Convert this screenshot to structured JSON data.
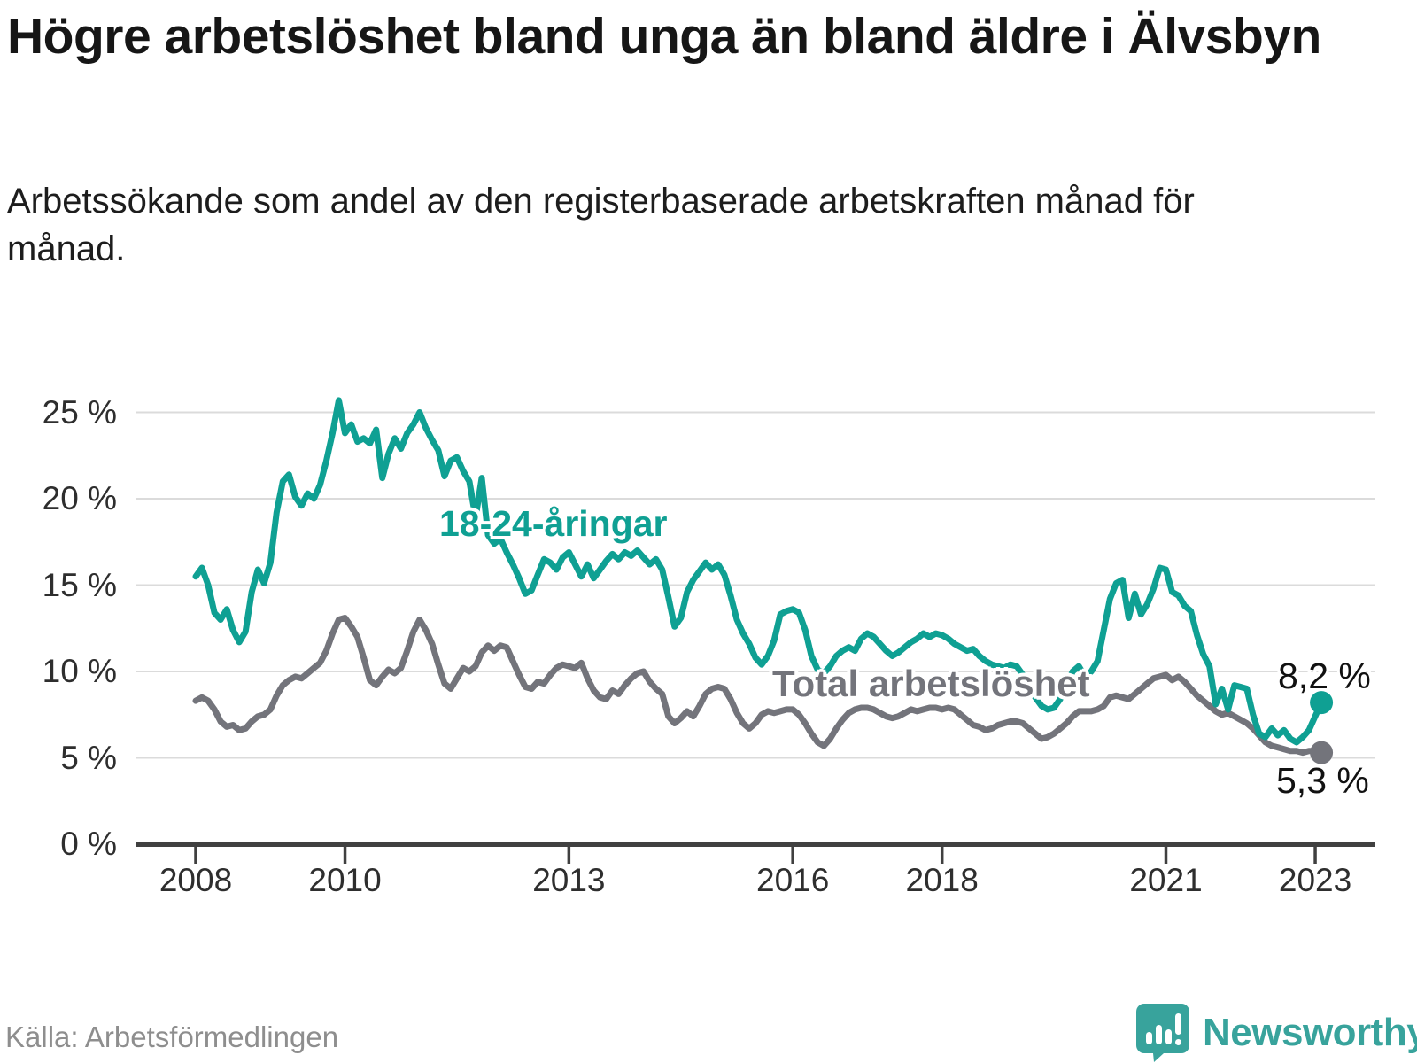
{
  "title": "Högre arbetslöshet bland unga än bland äldre i Älvsbyn",
  "subtitle": "Arbetssökande som andel av den registerbaserade arbetskraften månad för månad.",
  "source": "Källa: Arbetsförmedlingen",
  "branding": {
    "name": "Newsworthy"
  },
  "colors": {
    "youth_line": "#0fa093",
    "total_line": "#73747b",
    "axis": "#404040",
    "grid": "#dbdbdb",
    "brand_teal": "#38a39c",
    "text_dark": "#161616",
    "source_gray": "#8e8e8e"
  },
  "chart_data": {
    "type": "line",
    "unit": "%",
    "frequency": "monthly",
    "x_start": "2008-01",
    "x_end": "2023-02",
    "ylim": [
      0,
      26.5
    ],
    "grid": "horizontal",
    "y_ticks": [
      {
        "value": 0,
        "label": "0 %"
      },
      {
        "value": 5,
        "label": "5 %"
      },
      {
        "value": 10,
        "label": "10 %"
      },
      {
        "value": 15,
        "label": "15 %"
      },
      {
        "value": 20,
        "label": "20 %"
      },
      {
        "value": 25,
        "label": "25 %"
      }
    ],
    "x_ticks": [
      {
        "year": 2008,
        "label": "2008"
      },
      {
        "year": 2010,
        "label": "2010"
      },
      {
        "year": 2013,
        "label": "2013"
      },
      {
        "year": 2016,
        "label": "2016"
      },
      {
        "year": 2018,
        "label": "2018"
      },
      {
        "year": 2021,
        "label": "2021"
      },
      {
        "year": 2023,
        "label": "2023"
      }
    ],
    "series": [
      {
        "name": "18-24-åringar",
        "color": "#0fa093",
        "end_label": "8,2 %",
        "end_value": 8.2,
        "values": [
          15.5,
          16.0,
          15.0,
          13.4,
          13.0,
          13.6,
          12.4,
          11.7,
          12.3,
          14.6,
          15.9,
          15.1,
          16.3,
          19.2,
          21.0,
          21.4,
          20.1,
          19.6,
          20.3,
          20.0,
          20.8,
          22.2,
          23.8,
          25.7,
          23.8,
          24.3,
          23.3,
          23.5,
          23.2,
          24.0,
          21.2,
          22.6,
          23.5,
          22.9,
          23.8,
          24.3,
          25.0,
          24.1,
          23.4,
          22.8,
          21.3,
          22.2,
          22.4,
          21.6,
          21.0,
          18.9,
          21.2,
          17.9,
          17.4,
          17.7,
          16.9,
          16.2,
          15.4,
          14.5,
          14.7,
          15.6,
          16.5,
          16.3,
          15.9,
          16.6,
          16.9,
          16.2,
          15.5,
          16.2,
          15.4,
          15.9,
          16.4,
          16.8,
          16.5,
          16.9,
          16.7,
          17.0,
          16.6,
          16.2,
          16.5,
          15.9,
          14.3,
          12.6,
          13.1,
          14.6,
          15.3,
          15.8,
          16.3,
          15.9,
          16.2,
          15.6,
          14.4,
          13.0,
          12.2,
          11.6,
          10.8,
          10.4,
          10.9,
          11.8,
          13.3,
          13.5,
          13.6,
          13.4,
          12.4,
          10.9,
          10.1,
          9.9,
          10.3,
          10.9,
          11.2,
          11.4,
          11.2,
          11.9,
          12.2,
          12.0,
          11.6,
          11.2,
          10.9,
          11.1,
          11.4,
          11.7,
          11.9,
          12.2,
          12.0,
          12.2,
          12.1,
          11.9,
          11.6,
          11.4,
          11.2,
          11.3,
          10.9,
          10.6,
          10.4,
          10.3,
          10.2,
          10.4,
          10.3,
          9.8,
          9.2,
          8.5,
          8.0,
          7.8,
          7.9,
          8.4,
          9.2,
          10.0,
          10.3,
          9.7,
          10.0,
          10.6,
          12.4,
          14.2,
          15.1,
          15.3,
          13.1,
          14.5,
          13.3,
          13.9,
          14.8,
          16.0,
          15.9,
          14.6,
          14.4,
          13.8,
          13.5,
          12.1,
          11.0,
          10.3,
          8.1,
          9.0,
          7.8,
          9.2,
          9.1,
          9.0,
          7.5,
          6.4,
          6.2,
          6.7,
          6.3,
          6.6,
          6.1,
          5.9,
          6.2,
          6.6,
          7.4,
          8.2
        ]
      },
      {
        "name": "Total arbetslöshet",
        "color": "#73747b",
        "end_label": "5,3 %",
        "end_value": 5.3,
        "values": [
          8.3,
          8.5,
          8.3,
          7.8,
          7.1,
          6.8,
          6.9,
          6.6,
          6.7,
          7.1,
          7.4,
          7.5,
          7.8,
          8.6,
          9.2,
          9.5,
          9.7,
          9.6,
          9.9,
          10.2,
          10.5,
          11.2,
          12.2,
          13.0,
          13.1,
          12.6,
          12.0,
          10.8,
          9.5,
          9.2,
          9.7,
          10.1,
          9.9,
          10.2,
          11.2,
          12.3,
          13.0,
          12.4,
          11.6,
          10.4,
          9.3,
          9.0,
          9.6,
          10.2,
          10.0,
          10.3,
          11.1,
          11.5,
          11.2,
          11.5,
          11.4,
          10.6,
          9.8,
          9.1,
          9.0,
          9.4,
          9.3,
          9.8,
          10.2,
          10.4,
          10.3,
          10.2,
          10.5,
          9.6,
          8.9,
          8.5,
          8.4,
          8.9,
          8.7,
          9.2,
          9.6,
          9.9,
          10.0,
          9.4,
          9.0,
          8.7,
          7.4,
          7.0,
          7.3,
          7.7,
          7.4,
          8.0,
          8.7,
          9.0,
          9.1,
          9.0,
          8.4,
          7.6,
          7.0,
          6.7,
          7.0,
          7.5,
          7.7,
          7.6,
          7.7,
          7.8,
          7.8,
          7.5,
          7.0,
          6.4,
          5.9,
          5.7,
          6.1,
          6.7,
          7.2,
          7.6,
          7.8,
          7.9,
          7.9,
          7.8,
          7.6,
          7.4,
          7.3,
          7.4,
          7.6,
          7.8,
          7.7,
          7.8,
          7.9,
          7.9,
          7.8,
          7.9,
          7.8,
          7.5,
          7.2,
          6.9,
          6.8,
          6.6,
          6.7,
          6.9,
          7.0,
          7.1,
          7.1,
          7.0,
          6.7,
          6.4,
          6.1,
          6.2,
          6.4,
          6.7,
          7.0,
          7.4,
          7.7,
          7.7,
          7.7,
          7.8,
          8.0,
          8.5,
          8.6,
          8.5,
          8.4,
          8.7,
          9.0,
          9.3,
          9.6,
          9.7,
          9.8,
          9.5,
          9.7,
          9.4,
          9.0,
          8.6,
          8.3,
          8.0,
          7.7,
          7.5,
          7.6,
          7.4,
          7.2,
          7.0,
          6.7,
          6.3,
          5.9,
          5.7,
          5.6,
          5.5,
          5.4,
          5.4,
          5.3,
          5.4,
          5.4,
          5.3
        ]
      }
    ]
  }
}
